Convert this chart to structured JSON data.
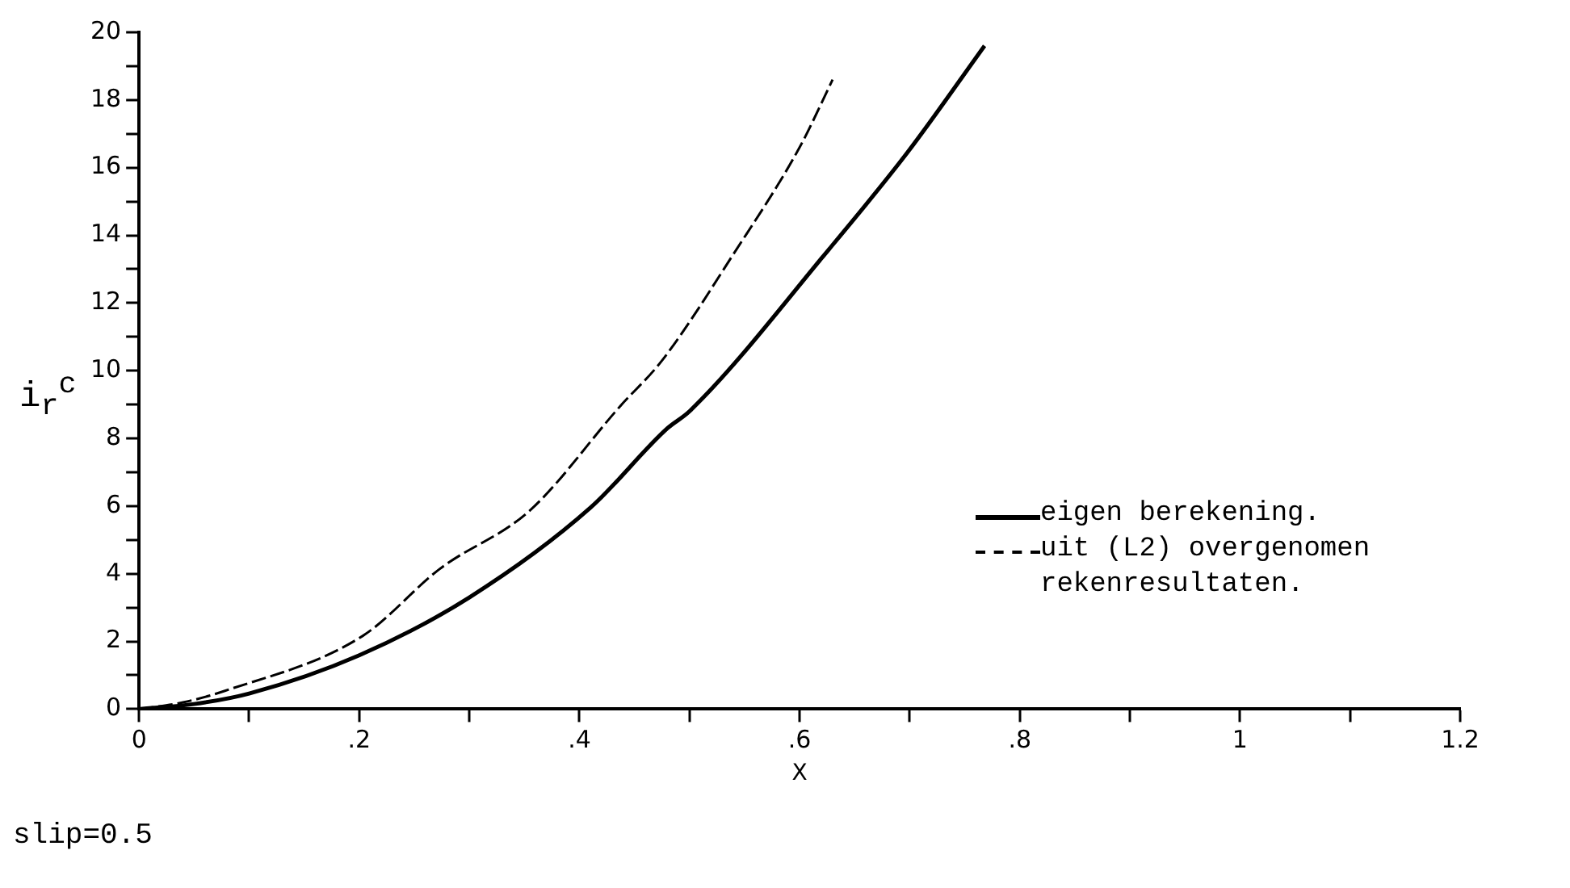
{
  "chart_data": {
    "type": "line",
    "xlabel": "X",
    "ylabel": "i$_{r}$$^{c}$",
    "annotations": [
      "slip=0.5"
    ],
    "xlim": [
      0,
      1.2
    ],
    "ylim": [
      0,
      20
    ],
    "xticks": [
      0,
      {
        "value": 0.1,
        "label": null
      },
      {
        "value": 0.2,
        "label": ".2"
      },
      {
        "value": 0.3,
        "label": null
      },
      {
        "value": 0.4,
        "label": ".4"
      },
      {
        "value": 0.5,
        "label": null
      },
      {
        "value": 0.6,
        "label": ".6"
      },
      {
        "value": 0.7,
        "label": null
      },
      {
        "value": 0.8,
        "label": ".8"
      },
      {
        "value": 0.9,
        "label": null
      },
      1,
      {
        "value": 1.1,
        "label": null
      },
      1.2
    ],
    "yticks": [
      0,
      {
        "value": 1,
        "label": null
      },
      2,
      {
        "value": 3,
        "label": null
      },
      4,
      {
        "value": 5,
        "label": null
      },
      6,
      {
        "value": 7,
        "label": null
      },
      8,
      {
        "value": 9,
        "label": null
      },
      10,
      {
        "value": 11,
        "label": null
      },
      12,
      {
        "value": 13,
        "label": null
      },
      14,
      {
        "value": 15,
        "label": null
      },
      16,
      {
        "value": 17,
        "label": null
      },
      18,
      {
        "value": 19,
        "label": null
      },
      20
    ],
    "grid": false,
    "legend": "right",
    "marker": "none",
    "series": [
      {
        "name": "eigen berekening.",
        "color": "#000000",
        "line_style": "solid",
        "x": [
          0,
          0.05,
          0.1,
          0.2,
          0.3,
          0.41,
          0.48,
          0.5,
          0.627,
          0.698,
          0.768
        ],
        "values": [
          0,
          0.15,
          0.46,
          1.59,
          3.3,
          5.95,
          8.3,
          8.8,
          13.6,
          16.45,
          19.6
        ]
      },
      {
        "name": "uit (L2) overgenomen rekenresultaten.",
        "color": "#000000",
        "line_style": "dashed",
        "x": [
          0,
          0.04,
          0.078,
          0.203,
          0.273,
          0.355,
          0.437,
          0.475,
          0.54,
          0.6,
          0.63
        ],
        "values": [
          0,
          0.2,
          0.54,
          2.16,
          4.14,
          5.87,
          8.95,
          10.3,
          13.45,
          16.6,
          18.6
        ]
      }
    ]
  }
}
